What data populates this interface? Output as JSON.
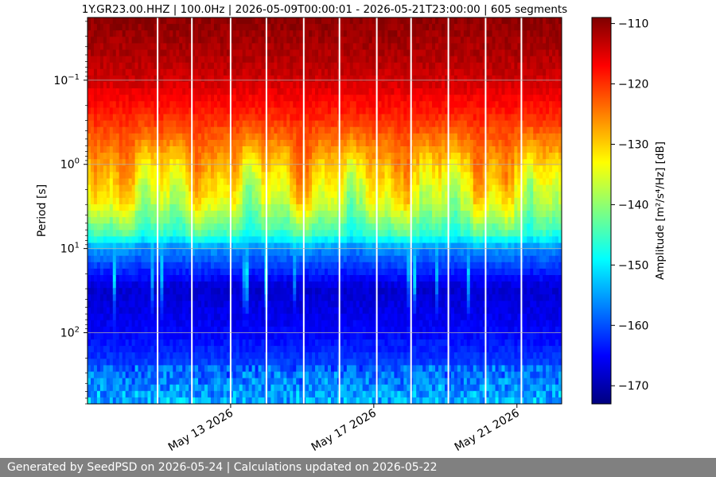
{
  "chart_data": {
    "type": "heatmap",
    "title": "1Y.GR23.00.HHZ | 100.0Hz | 2026-05-09T00:00:01 - 2026-05-21T23:00:00 | 605 segments",
    "ylabel": "Period [s]",
    "xlabel": "",
    "y_scale": "log",
    "y_inverted": true,
    "ylim": [
      0.018,
      700
    ],
    "y_tick_labels": [
      {
        "value": 0.1,
        "base": "10",
        "exp": "−1"
      },
      {
        "value": 1,
        "base": "10",
        "exp": "0"
      },
      {
        "value": 10,
        "base": "10",
        "exp": "1"
      },
      {
        "value": 100,
        "base": "10",
        "exp": "2"
      }
    ],
    "xlim": [
      "2026-05-09",
      "2026-05-22T06:00"
    ],
    "x_ticks": [
      {
        "date": "2026-05-13",
        "label": "May 13 2026"
      },
      {
        "date": "2026-05-17",
        "label": "May 17 2026"
      },
      {
        "date": "2026-05-21",
        "label": "May 21 2026"
      }
    ],
    "grid": true,
    "colorbar": {
      "label": "Amplitude [m²/s⁴/Hz] [dB]",
      "colormap": "jet",
      "range": [
        -173,
        -109
      ],
      "ticks": [
        "−110",
        "−120",
        "−130",
        "−140",
        "−150",
        "−160",
        "−170"
      ],
      "tick_values": [
        -110,
        -120,
        -130,
        -140,
        -150,
        -160,
        -170
      ]
    },
    "data_gaps": [
      "2026-05-10T23:00",
      "2026-05-11T22:00",
      "2026-05-13T00:00",
      "2026-05-14T00:00",
      "2026-05-15T01:00",
      "2026-05-16T01:00",
      "2026-05-17T02:00",
      "2026-05-18T01:00",
      "2026-05-19T02:00",
      "2026-05-20T03:00",
      "2026-05-21T03:00"
    ],
    "psd_profile_db": [
      {
        "period": 0.02,
        "amplitude": -110
      },
      {
        "period": 0.05,
        "amplitude": -112
      },
      {
        "period": 0.1,
        "amplitude": -114
      },
      {
        "period": 0.3,
        "amplitude": -120
      },
      {
        "period": 1,
        "amplitude": -129
      },
      {
        "period": 3,
        "amplitude": -136
      },
      {
        "period": 7,
        "amplitude": -146
      },
      {
        "period": 10,
        "amplitude": -156
      },
      {
        "period": 30,
        "amplitude": -168
      },
      {
        "period": 100,
        "amplitude": -165
      },
      {
        "period": 300,
        "amplitude": -160
      },
      {
        "period": 700,
        "amplitude": -155
      }
    ]
  },
  "footer": {
    "text": "Generated by SeedPSD on 2026-05-24 | Calculations updated on 2026-05-22"
  }
}
